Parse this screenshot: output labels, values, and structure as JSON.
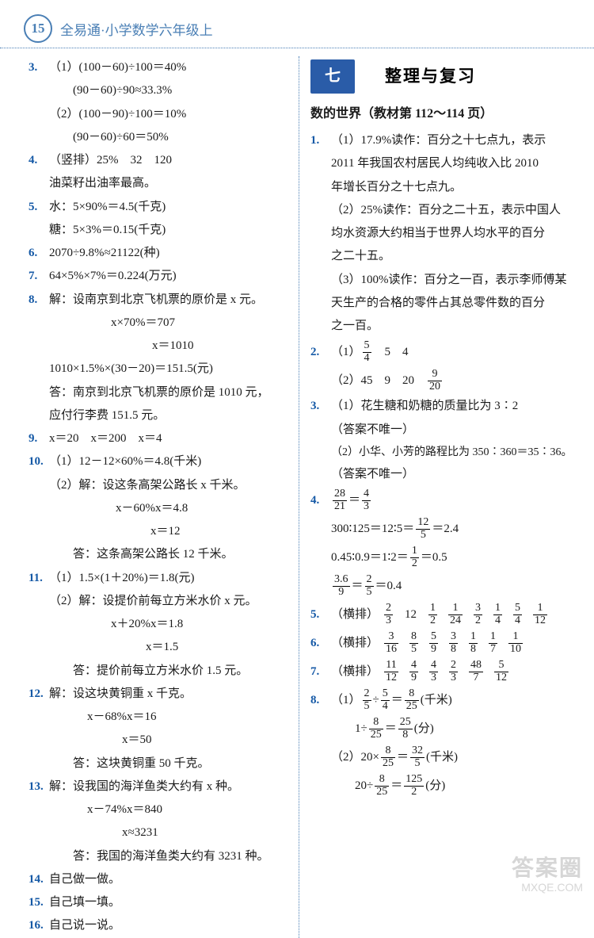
{
  "header": {
    "page_num": "15",
    "title": "全易通·小学数学六年级上"
  },
  "left": {
    "q3": {
      "l1": "（1）(100－60)÷100＝40%",
      "l2": "(90－60)÷90≈33.3%",
      "l3": "（2）(100－90)÷100＝10%",
      "l4": "(90－60)÷60＝50%"
    },
    "q4": {
      "l1": "（竖排）25%　32　120",
      "l2": "油菜籽出油率最高。"
    },
    "q5": {
      "l1": "水：5×90%＝4.5(千克)",
      "l2": "糖：5×3%＝0.15(千克)"
    },
    "q6": "2070÷9.8%≈21122(种)",
    "q7": "64×5%×7%＝0.224(万元)",
    "q8": {
      "l1": "解：设南京到北京飞机票的原价是 x 元。",
      "l2": "x×70%＝707",
      "l3": "x＝1010",
      "l4": "1010×1.5%×(30－20)＝151.5(元)",
      "l5": "答：南京到北京飞机票的原价是 1010 元，",
      "l6": "应付行李费 151.5 元。"
    },
    "q9": "x＝20　x＝200　x＝4",
    "q10": {
      "l1": "（1）12－12×60%＝4.8(千米)",
      "l2": "（2）解：设这条高架公路长 x 千米。",
      "l3": "x－60%x＝4.8",
      "l4": "x＝12",
      "l5": "答：这条高架公路长 12 千米。"
    },
    "q11": {
      "l1": "（1）1.5×(1＋20%)＝1.8(元)",
      "l2": "（2）解：设提价前每立方米水价 x 元。",
      "l3": "x＋20%x＝1.8",
      "l4": "x＝1.5",
      "l5": "答：提价前每立方米水价 1.5 元。"
    },
    "q12": {
      "l1": "解：设这块黄铜重 x 千克。",
      "l2": "x－68%x＝16",
      "l3": "x＝50",
      "l4": "答：这块黄铜重 50 千克。"
    },
    "q13": {
      "l1": "解：设我国的海洋鱼类大约有 x 种。",
      "l2": "x－74%x＝840",
      "l3": "x≈3231",
      "l4": "答：我国的海洋鱼类大约有 3231 种。"
    },
    "q14": "自己做一做。",
    "q15": "自己填一填。",
    "q16": "自己说一说。"
  },
  "right": {
    "chapter_tab": "七",
    "chapter_title": "整理与复习",
    "section": "数的世界（教材第 112～114 页）",
    "q1": {
      "l1": "（1）17.9%读作：百分之十七点九，表示",
      "l2": "2011 年我国农村居民人均纯收入比 2010",
      "l3": "年增长百分之十七点九。",
      "l4": "（2）25%读作：百分之二十五，表示中国人",
      "l5": "均水资源大约相当于世界人均水平的百分",
      "l6": "之二十五。",
      "l7": "（3）100%读作：百分之一百，表示李师傅某",
      "l8": "天生产的合格的零件占其总零件数的百分",
      "l9": "之一百。"
    },
    "q2": {
      "p1_pre": "（1）",
      "p1_fn": "5",
      "p1_fd": "4",
      "p1_post": "　5　4",
      "p2_pre": "（2）45　9　20　",
      "p2_fn": "9",
      "p2_fd": "20"
    },
    "q3": {
      "l1": "（1）花生糖和奶糖的质量比为 3∶2",
      "l2": "（答案不唯一）",
      "l3": "（2）小华、小芳的路程比为 350∶360＝35∶36。",
      "l4": "（答案不唯一）"
    },
    "q4": {
      "a_fn": "28",
      "a_fd": "21",
      "a_eq": "＝",
      "a2_fn": "4",
      "a2_fd": "3",
      "b_pre": "300∶125＝12∶5＝",
      "b_fn": "12",
      "b_fd": "5",
      "b_post": "＝2.4",
      "c_pre": "0.45∶0.9＝1∶2＝",
      "c_fn": "1",
      "c_fd": "2",
      "c_post": "＝0.5",
      "d_fn": "3.6",
      "d_fd": "9",
      "d_eq": "＝",
      "d2_fn": "2",
      "d2_fd": "5",
      "d_post": "＝0.4"
    },
    "q5": {
      "label": "（横排）",
      "f": [
        {
          "n": "2",
          "d": "3"
        },
        {
          "t": "12"
        },
        {
          "n": "1",
          "d": "2"
        },
        {
          "n": "1",
          "d": "24"
        },
        {
          "n": "3",
          "d": "2"
        },
        {
          "n": "1",
          "d": "4"
        },
        {
          "n": "5",
          "d": "4"
        },
        {
          "n": "1",
          "d": "12"
        }
      ]
    },
    "q6": {
      "label": "（横排）",
      "f": [
        {
          "n": "3",
          "d": "16"
        },
        {
          "n": "8",
          "d": "5"
        },
        {
          "n": "5",
          "d": "9"
        },
        {
          "n": "3",
          "d": "8"
        },
        {
          "n": "1",
          "d": "8"
        },
        {
          "n": "1",
          "d": "7"
        },
        {
          "n": "1",
          "d": "10"
        }
      ]
    },
    "q7": {
      "label": "（横排）",
      "f": [
        {
          "n": "11",
          "d": "12"
        },
        {
          "n": "4",
          "d": "9"
        },
        {
          "n": "4",
          "d": "3"
        },
        {
          "n": "2",
          "d": "3"
        },
        {
          "n": "48",
          "d": "7"
        },
        {
          "n": "5",
          "d": "12"
        }
      ]
    },
    "q8": {
      "a_pre": "（1）",
      "a1n": "2",
      "a1d": "5",
      "a_div": "÷",
      "a2n": "5",
      "a2d": "4",
      "a_eq": "＝",
      "a3n": "8",
      "a3d": "25",
      "a_post": "(千米)",
      "b_pre": "1÷",
      "b1n": "8",
      "b1d": "25",
      "b_eq": "＝",
      "b2n": "25",
      "b2d": "8",
      "b_post": "(分)",
      "c_pre": "（2）20×",
      "c1n": "8",
      "c1d": "25",
      "c_eq": "＝",
      "c2n": "32",
      "c2d": "5",
      "c_post": "(千米)",
      "d_pre": "20÷",
      "d1n": "8",
      "d1d": "25",
      "d_eq": "＝",
      "d2n": "125",
      "d2d": "2",
      "d_post": "(分)"
    }
  },
  "watermark": {
    "l1": "答案圈",
    "l2": "MXQE.COM"
  }
}
